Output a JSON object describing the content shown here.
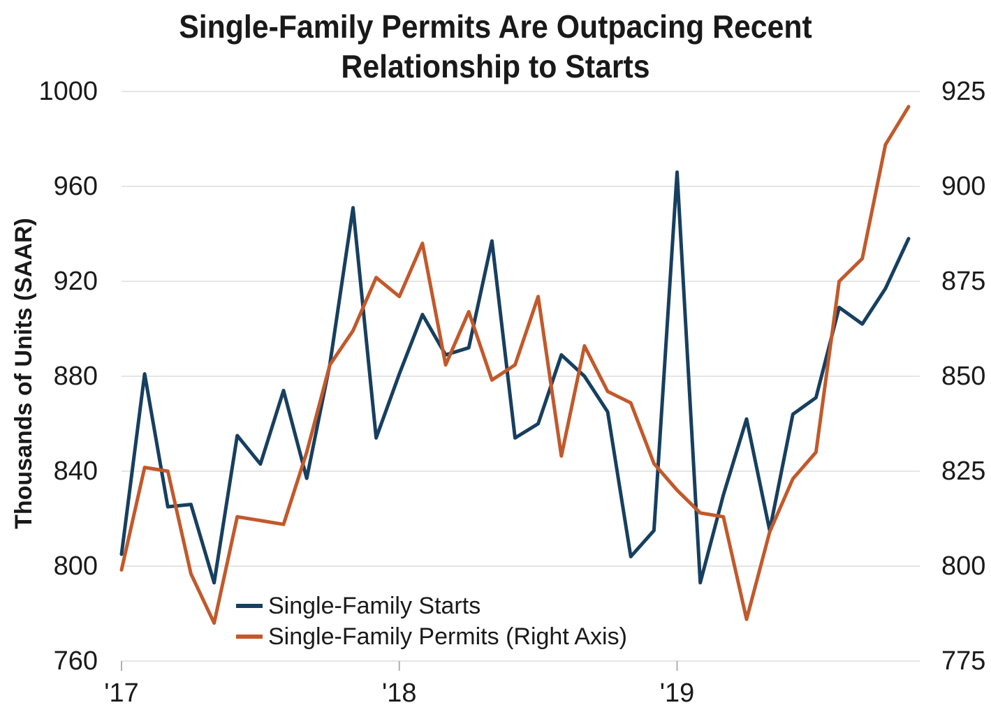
{
  "title": {
    "line1": "Single-Family Permits Are Outpacing Recent",
    "line2": "Relationship to Starts"
  },
  "y_axis": {
    "label": "Thousands of Units (SAAR)",
    "left_tick_labels": [
      "1000",
      "960",
      "920",
      "880",
      "840",
      "800",
      "760"
    ],
    "right_tick_labels": [
      "925",
      "900",
      "875",
      "850",
      "825",
      "800",
      "775"
    ]
  },
  "x_axis": {
    "tick_labels": [
      "'17",
      "'18",
      "'19"
    ]
  },
  "legend": {
    "items": [
      {
        "label": "Single-Family Starts",
        "color": "#173f5f"
      },
      {
        "label": "Single-Family Permits (Right Axis)",
        "color": "#c2592b"
      }
    ]
  },
  "colors": {
    "starts_line": "#173f5f",
    "permits_line": "#c2592b",
    "gridline": "#e5e5e5",
    "tick": "#b0b0b0",
    "text": "#1a1a1a"
  },
  "chart_data": {
    "type": "line",
    "title": "Single-Family Permits Are Outpacing Recent Relationship to Starts",
    "ylabel_left": "Thousands of Units (SAAR)",
    "x": [
      "2017-01",
      "2017-02",
      "2017-03",
      "2017-04",
      "2017-05",
      "2017-06",
      "2017-07",
      "2017-08",
      "2017-09",
      "2017-10",
      "2017-11",
      "2017-12",
      "2018-01",
      "2018-02",
      "2018-03",
      "2018-04",
      "2018-05",
      "2018-06",
      "2018-07",
      "2018-08",
      "2018-09",
      "2018-10",
      "2018-11",
      "2018-12",
      "2019-01",
      "2019-02",
      "2019-03",
      "2019-04",
      "2019-05",
      "2019-06",
      "2019-07",
      "2019-08",
      "2019-09",
      "2019-10",
      "2019-11"
    ],
    "x_tick_labels": [
      "'17",
      "'18",
      "'19"
    ],
    "x_tick_month_index": [
      0,
      12,
      24
    ],
    "left_axis_range": [
      760,
      1000
    ],
    "right_axis_range": [
      775,
      925
    ],
    "left_axis_ticks": [
      1000,
      960,
      920,
      880,
      840,
      800,
      760
    ],
    "right_axis_ticks": [
      925,
      900,
      875,
      850,
      825,
      800,
      775
    ],
    "grid": "horizontal",
    "legend_position": "inside-bottom-center",
    "series": [
      {
        "name": "Single-Family Starts",
        "axis": "left",
        "color": "#173f5f",
        "values": [
          805,
          881,
          825,
          826,
          793,
          855,
          843,
          874,
          837,
          885,
          951,
          854,
          881,
          906,
          889,
          892,
          937,
          854,
          860,
          889,
          880,
          865,
          804,
          815,
          966,
          793,
          830,
          862,
          815,
          864,
          871,
          909,
          902,
          917,
          938
        ]
      },
      {
        "name": "Single-Family Permits (Right Axis)",
        "axis": "right",
        "color": "#c2592b",
        "values": [
          799,
          826,
          825,
          798,
          785,
          813,
          812,
          811,
          830,
          853,
          862,
          876,
          871,
          885,
          853,
          867,
          849,
          853,
          871,
          829,
          858,
          846,
          843,
          827,
          820,
          814,
          813,
          786,
          809,
          823,
          830,
          875,
          881,
          911,
          921
        ]
      }
    ]
  }
}
